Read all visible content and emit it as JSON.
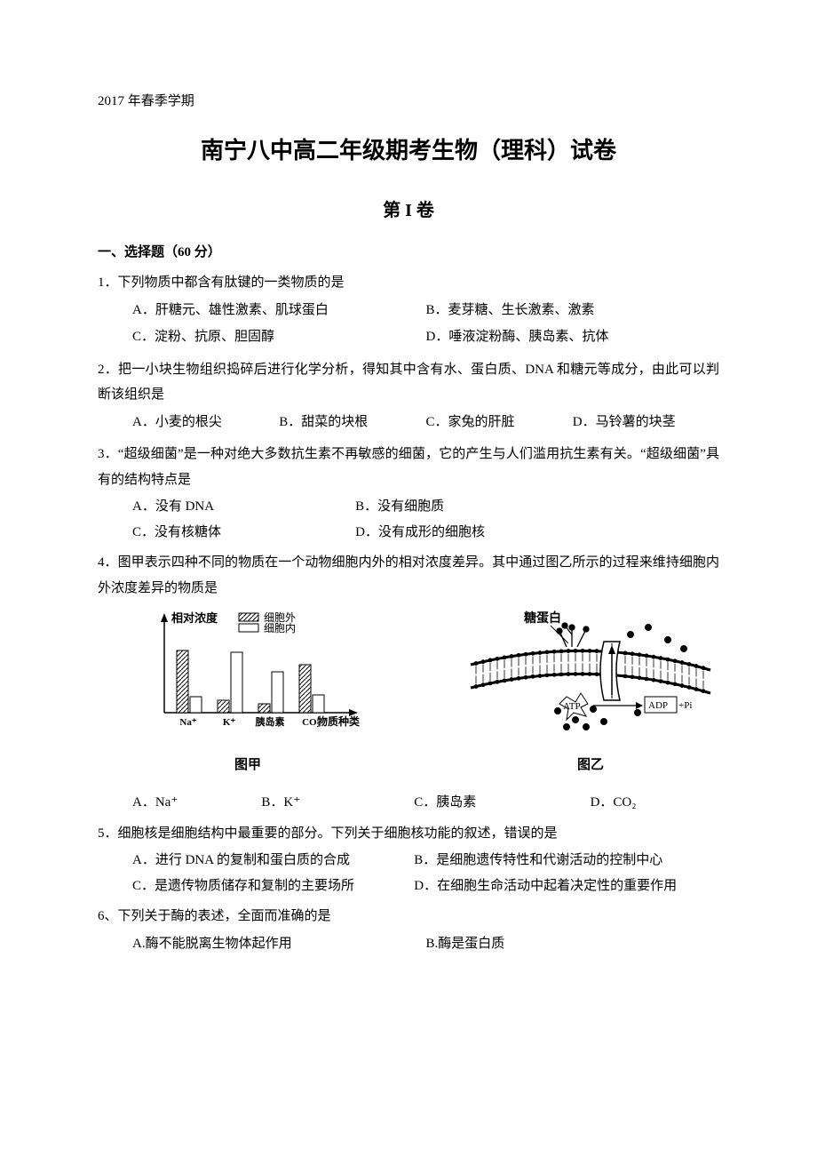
{
  "semester": "2017 年春季学期",
  "title": "南宁八中高二年级期考生物（理科）试卷",
  "volume": "第 I 卷",
  "section_heading": "一、选择题（60 分）",
  "q1": {
    "text": "1．下列物质中都含有肽键的一类物质的是",
    "A": "A．肝糖元、雄性激素、肌球蛋白",
    "B": "B．麦芽糖、生长激素、激素",
    "C": "C．淀粉、抗原、胆固醇",
    "D": "D．唾液淀粉酶、胰岛素、抗体"
  },
  "q2": {
    "text": "2．把一小块生物组织捣碎后进行化学分析，得知其中含有水、蛋白质、DNA 和糖元等成分，由此可以判断该组织是",
    "A": "A．小麦的根尖",
    "B": "B．甜菜的块根",
    "C": "C．家兔的肝脏",
    "D": "D．马铃薯的块茎"
  },
  "q3": {
    "text": "3．“超级细菌”是一种对绝大多数抗生素不再敏感的细菌，它的产生与人们滥用抗生素有关。“超级细菌”具有的结构特点是",
    "A": "A．没有 DNA",
    "B": "B．没有细胞质",
    "C": "C．没有核糖体",
    "D": "D．没有成形的细胞核"
  },
  "q4": {
    "text": "4．图甲表示四种不同的物质在一个动物细胞内外的相对浓度差异。其中通过图乙所示的过程来维持细胞内外浓度差异的物质是",
    "fig1": {
      "ylabel": "相对浓度",
      "legend_out": "细胞外",
      "legend_in": "细胞内",
      "categories": [
        "Na⁺",
        "K⁺",
        "胰岛素",
        "CO₂"
      ],
      "xlabel": "物质种类",
      "caption": "图甲",
      "out_heights": [
        70,
        14,
        10,
        54
      ],
      "in_heights": [
        18,
        68,
        46,
        20
      ],
      "bar_hatch_color": "#000000",
      "bar_fill_open": "#ffffff",
      "stroke": "#000000"
    },
    "fig2": {
      "label_glyco": "糖蛋白",
      "label_atp": "ATP",
      "label_adp": "ADP",
      "label_pi": "+Pi",
      "caption": "图乙"
    },
    "A": "A．Na⁺",
    "B": "B．K⁺",
    "C": "C．胰岛素",
    "D": "D．CO₂"
  },
  "q5": {
    "text": "5．细胞核是细胞结构中最重要的部分。下列关于细胞核功能的叙述，错误的是",
    "A": "A．进行 DNA 的复制和蛋白质的合成",
    "B": "B．是细胞遗传特性和代谢活动的控制中心",
    "C": "C．是遗传物质储存和复制的主要场所",
    "D": "D．在细胞生命活动中起着决定性的重要作用"
  },
  "q6": {
    "text": "6、下列关于酶的表述，全面而准确的是",
    "A": "A.酶不能脱离生物体起作用",
    "B": "B.酶是蛋白质"
  }
}
